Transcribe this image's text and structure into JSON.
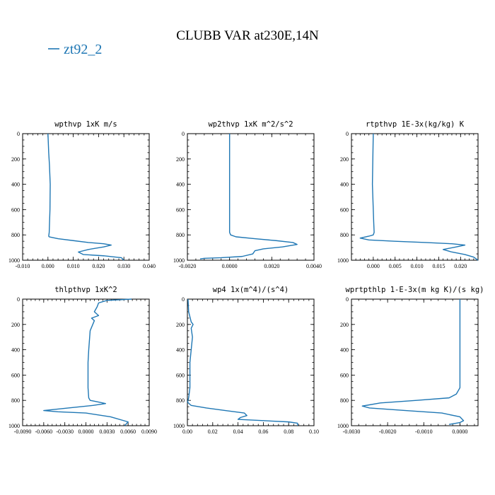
{
  "figure": {
    "title": "CLUBB VAR at230E,14N",
    "legend": {
      "label": "zt92_2",
      "color": "#1f77b4",
      "placement": "top-left"
    }
  },
  "chart_data": [
    {
      "type": "line",
      "title": "wpthvp  1xK m/s",
      "xlim": [
        -0.01,
        0.04
      ],
      "ylim": [
        1000,
        0
      ],
      "xticks": [
        "-0.010",
        "0.000",
        "0.010",
        "0.020",
        "0.030",
        "0.040"
      ],
      "yticks": [
        "0",
        "200",
        "400",
        "600",
        "800",
        "1000"
      ],
      "series": [
        {
          "color": "#1f77b4",
          "x": [
            0.0,
            0.0002,
            0.0003,
            0.0006,
            0.0009,
            0.0008,
            0.0005,
            0.0003,
            0.0005,
            0.004,
            0.01,
            0.016,
            0.022,
            0.025,
            0.022,
            0.016,
            0.012,
            0.014,
            0.022,
            0.029,
            0.03
          ],
          "y": [
            0,
            100,
            150,
            250,
            400,
            600,
            780,
            810,
            815,
            830,
            845,
            860,
            870,
            880,
            895,
            915,
            935,
            955,
            965,
            980,
            1000
          ]
        }
      ]
    },
    {
      "type": "line",
      "title": "wp2thvp  1xK m^2/s^2",
      "xlim": [
        -0.002,
        0.004
      ],
      "ylim": [
        1000,
        0
      ],
      "xticks": [
        "-0.0020",
        "0.0000",
        "0.0020",
        "0.0040"
      ],
      "yticks": [
        "0",
        "200",
        "400",
        "600",
        "800",
        "1000"
      ],
      "series": [
        {
          "color": "#1f77b4",
          "x": [
            0.0,
            0.0,
            0.0,
            0.0,
            5e-05,
            0.0003,
            0.0012,
            0.0022,
            0.003,
            0.0032,
            0.0025,
            0.0016,
            0.0012,
            0.0011,
            0.0006,
            -0.0004,
            -0.0012,
            -0.0014
          ],
          "y": [
            0,
            200,
            500,
            780,
            800,
            815,
            830,
            845,
            860,
            875,
            895,
            910,
            925,
            950,
            970,
            980,
            985,
            990
          ]
        }
      ]
    },
    {
      "type": "line",
      "title": "rtpthvp  1E-3x(kg/kg) K",
      "xlim": [
        -0.005,
        0.024
      ],
      "ylim": [
        1000,
        0
      ],
      "xticks": [
        "0.000",
        "0.005",
        "0.010",
        "0.015",
        "0.020"
      ],
      "yticks": [
        "0",
        "200",
        "400",
        "600",
        "800",
        "1000"
      ],
      "series": [
        {
          "color": "#1f77b4",
          "x": [
            0.0,
            -0.0001,
            -0.0002,
            0.0,
            0.0001,
            0.0002,
            0.0,
            -0.001,
            -0.003,
            -0.001,
            0.005,
            0.012,
            0.018,
            0.021,
            0.019,
            0.016,
            0.018,
            0.021,
            0.023,
            0.024
          ],
          "y": [
            0,
            200,
            400,
            600,
            700,
            780,
            800,
            810,
            825,
            840,
            850,
            860,
            870,
            880,
            895,
            915,
            935,
            955,
            975,
            1000
          ]
        }
      ]
    },
    {
      "type": "line",
      "title": "thlpthvp  1xK^2",
      "xlim": [
        -0.009,
        0.009
      ],
      "ylim": [
        1000,
        0
      ],
      "xticks": [
        "-0.0090",
        "-0.0060",
        "-0.0030",
        "0.0000",
        "0.0030",
        "0.0060",
        "0.0090"
      ],
      "yticks": [
        "0",
        "200",
        "400",
        "600",
        "800",
        "1000"
      ],
      "series": [
        {
          "color": "#1f77b4",
          "x": [
            0.0065,
            0.003,
            0.0018,
            0.0016,
            0.0012,
            0.0018,
            0.0008,
            0.0012,
            0.0006,
            0.0004,
            0.0003,
            0.0003,
            0.0003,
            0.0004,
            0.0006,
            0.0015,
            0.0028,
            0.001,
            -0.0025,
            -0.006,
            -0.004,
            0.0,
            0.0035,
            0.006,
            0.0055
          ],
          "y": [
            0,
            10,
            30,
            60,
            100,
            130,
            150,
            170,
            250,
            400,
            500,
            600,
            700,
            780,
            800,
            810,
            825,
            840,
            860,
            880,
            890,
            900,
            930,
            970,
            1000
          ]
        }
      ]
    },
    {
      "type": "line",
      "title": "wp4  1x(m^4)/(s^4)",
      "xlim": [
        0.0,
        0.1
      ],
      "ylim": [
        1000,
        0
      ],
      "xticks": [
        "0.00",
        "0.02",
        "0.04",
        "0.06",
        "0.08",
        "0.10"
      ],
      "yticks": [
        "0",
        "200",
        "400",
        "600",
        "800",
        "1000"
      ],
      "series": [
        {
          "color": "#1f77b4",
          "x": [
            0.0005,
            0.001,
            0.003,
            0.0045,
            0.003,
            0.004,
            0.003,
            0.002,
            0.002,
            0.002,
            0.001,
            0.0005,
            0.0002,
            0.003,
            0.015,
            0.03,
            0.045,
            0.047,
            0.042,
            0.04,
            0.06,
            0.08,
            0.087,
            0.087
          ],
          "y": [
            0,
            100,
            180,
            200,
            230,
            300,
            400,
            500,
            600,
            700,
            780,
            800,
            815,
            840,
            860,
            880,
            900,
            920,
            935,
            950,
            960,
            970,
            980,
            1000
          ]
        }
      ]
    },
    {
      "type": "line",
      "title": "wprtpthlp  1-E-3x(m kg K)/(s kg)",
      "xlim": [
        -0.003,
        0.0005
      ],
      "ylim": [
        1000,
        0
      ],
      "xticks": [
        "-0.0030",
        "-0.0020",
        "-0.0010",
        "0.0000"
      ],
      "yticks": [
        "0",
        "200",
        "400",
        "600",
        "800",
        "1000"
      ],
      "series": [
        {
          "color": "#1f77b4",
          "x": [
            0.0,
            0.0,
            0.0,
            0.0,
            -0.0001,
            -0.0003,
            -0.0012,
            -0.0022,
            -0.0027,
            -0.0025,
            -0.0015,
            -0.0005,
            0.0,
            0.0001,
            0.0,
            -0.0002,
            -0.0003
          ],
          "y": [
            0,
            200,
            500,
            700,
            750,
            780,
            800,
            820,
            845,
            860,
            880,
            900,
            930,
            960,
            975,
            985,
            990
          ]
        }
      ]
    }
  ]
}
